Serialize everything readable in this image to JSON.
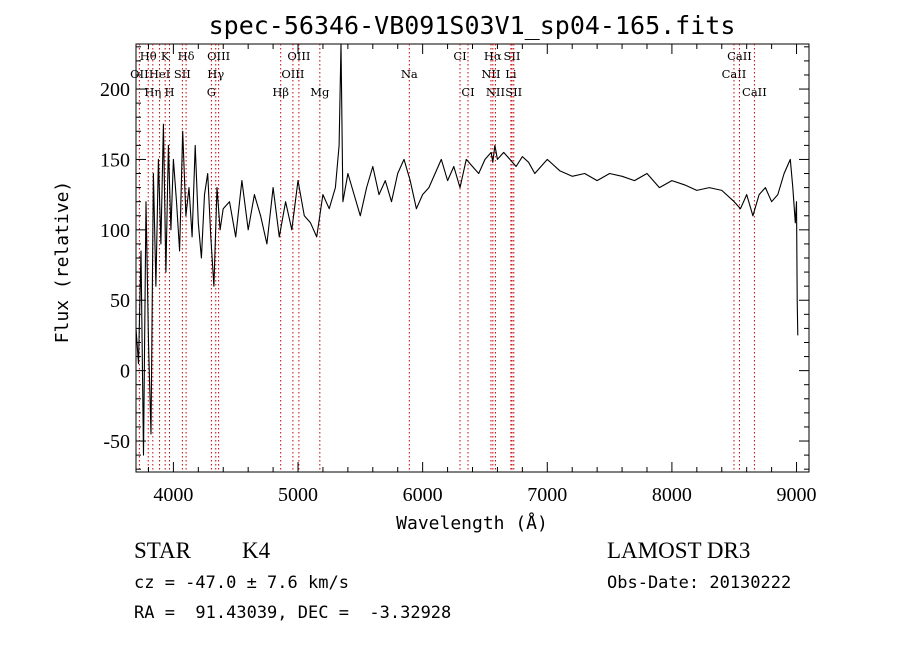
{
  "chart_data": {
    "type": "line",
    "title": "spec-56346-VB091S03V1_sp04-165.fits",
    "xlabel": "Wavelength (Å)",
    "ylabel": "Flux (relative)",
    "xlim": [
      3700,
      9100
    ],
    "ylim": [
      -72,
      232
    ],
    "x_ticks": [
      4000,
      5000,
      6000,
      7000,
      8000,
      9000
    ],
    "y_ticks": [
      -50,
      0,
      50,
      100,
      150,
      200
    ],
    "x_tick_labels": [
      "4000",
      "5000",
      "6000",
      "7000",
      "8000",
      "9000"
    ],
    "y_tick_labels": [
      "-50",
      "0",
      "50",
      "100",
      "150",
      "200"
    ],
    "grid": false,
    "line_color": "#000000",
    "marker_color": "#cc0000",
    "series": [
      {
        "name": "flux",
        "x": [
          3700,
          3720,
          3740,
          3760,
          3780,
          3800,
          3820,
          3840,
          3860,
          3880,
          3900,
          3920,
          3940,
          3960,
          3980,
          4000,
          4025,
          4050,
          4075,
          4100,
          4125,
          4150,
          4175,
          4200,
          4225,
          4250,
          4275,
          4300,
          4325,
          4350,
          4375,
          4400,
          4450,
          4500,
          4550,
          4600,
          4650,
          4700,
          4750,
          4800,
          4850,
          4900,
          4950,
          5000,
          5050,
          5100,
          5150,
          5200,
          5250,
          5300,
          5330,
          5345,
          5360,
          5400,
          5450,
          5500,
          5550,
          5600,
          5650,
          5700,
          5750,
          5800,
          5850,
          5900,
          5950,
          6000,
          6050,
          6100,
          6150,
          6200,
          6250,
          6300,
          6350,
          6400,
          6450,
          6500,
          6550,
          6563,
          6580,
          6600,
          6650,
          6700,
          6750,
          6800,
          6850,
          6900,
          6950,
          7000,
          7100,
          7200,
          7300,
          7400,
          7500,
          7600,
          7700,
          7800,
          7900,
          8000,
          8100,
          8200,
          8300,
          8400,
          8500,
          8550,
          8600,
          8650,
          8700,
          8750,
          8800,
          8850,
          8900,
          8950,
          8970,
          8990,
          9000,
          9005,
          9010
        ],
        "y": [
          30,
          5,
          85,
          -60,
          120,
          20,
          -45,
          140,
          60,
          150,
          90,
          175,
          70,
          160,
          100,
          150,
          120,
          85,
          170,
          110,
          130,
          95,
          160,
          105,
          80,
          125,
          140,
          95,
          60,
          130,
          100,
          115,
          120,
          95,
          135,
          100,
          125,
          110,
          90,
          130,
          95,
          120,
          100,
          135,
          110,
          105,
          95,
          125,
          115,
          130,
          160,
          232,
          120,
          140,
          125,
          110,
          130,
          145,
          125,
          135,
          120,
          140,
          150,
          135,
          115,
          125,
          130,
          140,
          150,
          135,
          145,
          130,
          150,
          145,
          140,
          150,
          155,
          148,
          160,
          150,
          155,
          150,
          145,
          152,
          148,
          140,
          145,
          150,
          142,
          138,
          140,
          135,
          140,
          138,
          135,
          140,
          130,
          135,
          132,
          128,
          130,
          128,
          120,
          115,
          125,
          110,
          125,
          130,
          120,
          125,
          140,
          150,
          130,
          105,
          120,
          50,
          25
        ]
      }
    ],
    "line_markers": [
      {
        "label": "Hθ",
        "x": 3798,
        "row": 0
      },
      {
        "label": "OII",
        "x": 3727,
        "row": 1
      },
      {
        "label": "Hη",
        "x": 3835,
        "row": 2
      },
      {
        "label": "HeI",
        "x": 3889,
        "row": 1
      },
      {
        "label": "K",
        "x": 3934,
        "row": 0
      },
      {
        "label": "SII",
        "x": 4072,
        "row": 1
      },
      {
        "label": "H",
        "x": 3969,
        "row": 2
      },
      {
        "label": "Hδ",
        "x": 4102,
        "row": 0
      },
      {
        "label": "OIII",
        "x": 4363,
        "row": 0
      },
      {
        "label": "Hγ",
        "x": 4340,
        "row": 1
      },
      {
        "label": "G",
        "x": 4305,
        "row": 2
      },
      {
        "label": "Hβ",
        "x": 4861,
        "row": 2
      },
      {
        "label": "OIII",
        "x": 4959,
        "row": 1
      },
      {
        "label": "OIII",
        "x": 5007,
        "row": 0
      },
      {
        "label": "Mg",
        "x": 5175,
        "row": 2
      },
      {
        "label": "Na",
        "x": 5893,
        "row": 1
      },
      {
        "label": "CI",
        "x": 6300,
        "row": 0
      },
      {
        "label": "CI",
        "x": 6364,
        "row": 2
      },
      {
        "label": "NII",
        "x": 6548,
        "row": 1
      },
      {
        "label": "Hα",
        "x": 6563,
        "row": 0
      },
      {
        "label": "NII",
        "x": 6584,
        "row": 2
      },
      {
        "label": "SII",
        "x": 6717,
        "row": 0
      },
      {
        "label": "Li",
        "x": 6708,
        "row": 1
      },
      {
        "label": "SII",
        "x": 6731,
        "row": 2
      },
      {
        "label": "CaII",
        "x": 8498,
        "row": 1
      },
      {
        "label": "CaII",
        "x": 8542,
        "row": 0
      },
      {
        "label": "CaII",
        "x": 8662,
        "row": 2
      }
    ]
  },
  "info": {
    "object_type": "STAR",
    "subclass": "K4",
    "survey": "LAMOST DR3",
    "cz_text": "cz = -47.0 ± 7.6 km/s",
    "obs_date_text": "Obs-Date: 20130222",
    "radec_text": "RA =  91.43039, DEC =  -3.32928"
  }
}
